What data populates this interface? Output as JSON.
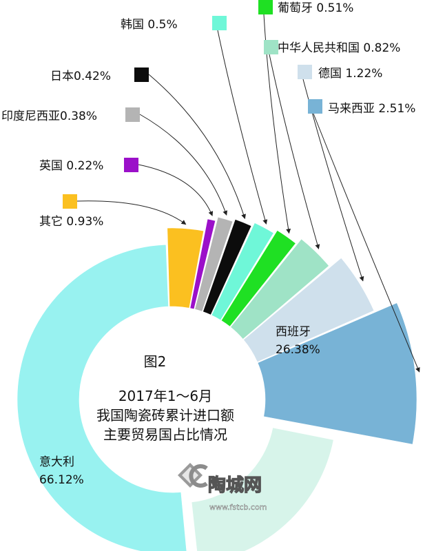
{
  "chart_data": {
    "type": "pie",
    "title": "图2",
    "subtitle_lines": [
      "2017年1～6月",
      "我国陶瓷砖累计进口额",
      "主要贸易国占比情况"
    ],
    "unit": "%",
    "slices": [
      {
        "name": "意大利",
        "value": 66.12,
        "label": "意大利",
        "value_label": "66.12%",
        "color": "#98f2f0"
      },
      {
        "name": "西班牙",
        "value": 26.38,
        "label": "西班牙",
        "value_label": "26.38%",
        "color": "#d7f4ea"
      },
      {
        "name": "马来西亚",
        "value": 2.51,
        "label": "马来西亚 2.51%",
        "color": "#78b3d6"
      },
      {
        "name": "德国",
        "value": 1.22,
        "label": "德国 1.22%",
        "color": "#cfe0ec"
      },
      {
        "name": "中华人民共和国",
        "value": 0.82,
        "label": "中华人民共和国 0.82%",
        "color": "#9fe3c6"
      },
      {
        "name": "葡萄牙",
        "value": 0.51,
        "label": "葡萄牙 0.51%",
        "color": "#1fe023"
      },
      {
        "name": "韩国",
        "value": 0.5,
        "label": "韩国 0.5%",
        "color": "#6ff7d8"
      },
      {
        "name": "日本",
        "value": 0.42,
        "label": "日本0.42%",
        "color": "#0c0c0c"
      },
      {
        "name": "印度尼西亚",
        "value": 0.38,
        "label": "印度尼西亚0.38%",
        "color": "#b4b4b4"
      },
      {
        "name": "英国",
        "value": 0.22,
        "label": "英国 0.22%",
        "color": "#9b10c9"
      },
      {
        "name": "其它",
        "value": 0.93,
        "label": "其它 0.93%",
        "color": "#fbc020"
      }
    ]
  },
  "watermark": {
    "brand": "陶城网",
    "url": "www.fstcb.com"
  }
}
